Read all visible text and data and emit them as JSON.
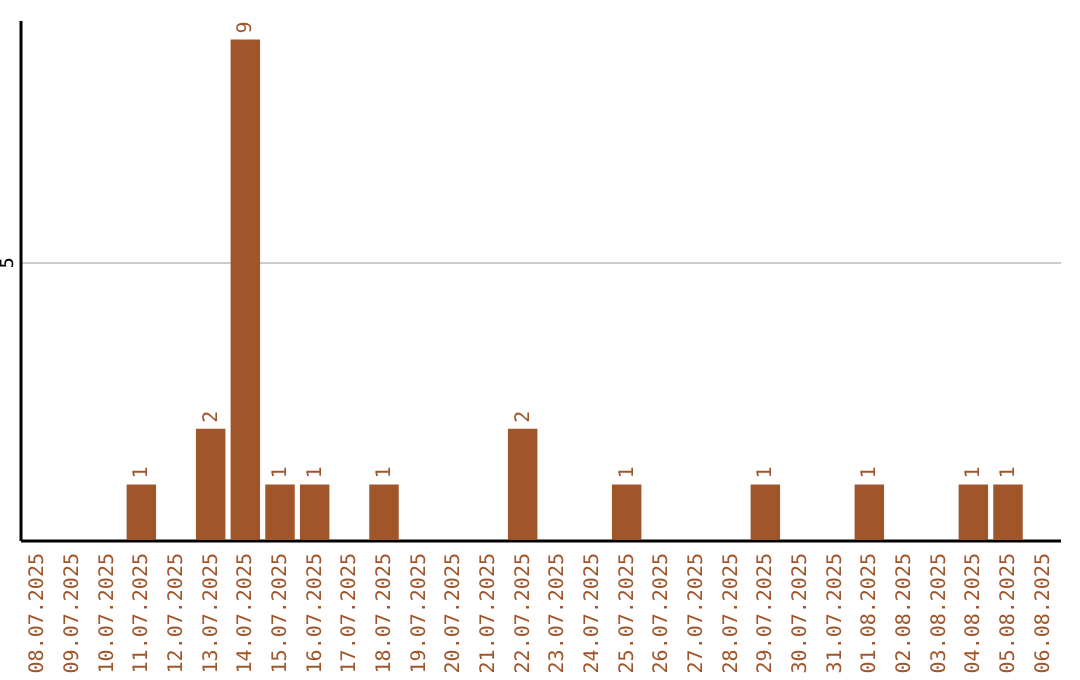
{
  "chart_data": {
    "type": "bar",
    "categories": [
      "08.07.2025",
      "09.07.2025",
      "10.07.2025",
      "11.07.2025",
      "12.07.2025",
      "13.07.2025",
      "14.07.2025",
      "15.07.2025",
      "16.07.2025",
      "17.07.2025",
      "18.07.2025",
      "19.07.2025",
      "20.07.2025",
      "21.07.2025",
      "22.07.2025",
      "23.07.2025",
      "24.07.2025",
      "25.07.2025",
      "26.07.2025",
      "27.07.2025",
      "28.07.2025",
      "29.07.2025",
      "30.07.2025",
      "31.07.2025",
      "01.08.2025",
      "02.08.2025",
      "03.08.2025",
      "04.08.2025",
      "05.08.2025",
      "06.08.2025"
    ],
    "values": [
      0,
      0,
      0,
      1,
      0,
      2,
      9,
      1,
      1,
      0,
      1,
      0,
      0,
      0,
      2,
      0,
      0,
      1,
      0,
      0,
      0,
      1,
      0,
      0,
      1,
      0,
      0,
      1,
      1,
      0
    ],
    "value_labels": [
      null,
      null,
      null,
      "1",
      null,
      "2",
      "9",
      "1",
      "1",
      null,
      "1",
      null,
      null,
      null,
      "2",
      null,
      null,
      "1",
      null,
      null,
      null,
      "1",
      null,
      null,
      "1",
      null,
      null,
      "1",
      "1",
      null
    ],
    "color": "#a0562a",
    "ylim": [
      0,
      9.35
    ],
    "yticks": [
      {
        "value": 0,
        "label": null
      },
      5
    ],
    "grid": "y"
  }
}
